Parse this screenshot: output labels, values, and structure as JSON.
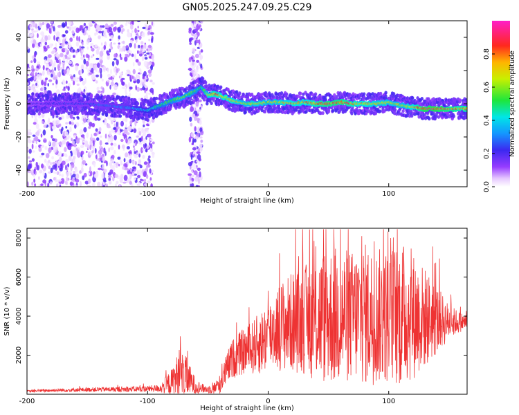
{
  "title": "GN05.2025.247.09.25.C29",
  "chart_data": [
    {
      "type": "heatmap",
      "xlabel": "Height of straight line (km)",
      "ylabel": "Frequency (Hz)",
      "xlim": [
        -200,
        165
      ],
      "ylim": [
        -50,
        50
      ],
      "xticks": [
        -200,
        -100,
        0,
        100
      ],
      "yticks": [
        -40,
        -20,
        0,
        20,
        40
      ],
      "grid": false,
      "colorbar": {
        "label": "Normalized spectral amplitude",
        "range": [
          0,
          1
        ],
        "ticks": [
          "0.0",
          "0.2",
          "0.4",
          "0.6",
          "0.8"
        ],
        "tick_values": [
          0.0,
          0.2,
          0.4,
          0.6,
          0.8
        ]
      },
      "ridge": {
        "description": "dominant frequency track (Hz) vs height (km)",
        "x": [
          -200,
          -150,
          -120,
          -100,
          -90,
          -80,
          -70,
          -60,
          -55,
          -50,
          -45,
          -40,
          -30,
          -20,
          -10,
          0,
          10,
          20,
          30,
          40,
          50,
          60,
          70,
          80,
          90,
          100,
          110,
          120,
          130,
          140,
          150,
          160,
          165
        ],
        "freq": [
          0,
          0,
          -2,
          -4,
          -1,
          2,
          4,
          8,
          10,
          5,
          6,
          5,
          2,
          0,
          0,
          1,
          1,
          0,
          1,
          0,
          0,
          1,
          0,
          0,
          0,
          1,
          -1,
          -2,
          -3,
          -3,
          -3,
          -3,
          -3
        ],
        "amplitude": [
          0.2,
          0.25,
          0.3,
          0.4,
          0.5,
          0.55,
          0.6,
          0.55,
          0.5,
          0.7,
          0.8,
          0.75,
          0.75,
          0.65,
          0.7,
          0.65,
          0.7,
          0.75,
          0.75,
          0.8,
          0.85,
          0.85,
          0.8,
          0.75,
          0.7,
          0.7,
          0.65,
          0.75,
          0.9,
          0.9,
          0.85,
          0.8,
          0.8
        ]
      },
      "noise_bands": [
        {
          "x": [
            -200,
            -95
          ],
          "level": "scattered low amplitude (0.0-0.2)"
        },
        {
          "x": [
            -65,
            -55
          ],
          "level": "vertical band of scattered low amplitude"
        }
      ]
    },
    {
      "type": "line",
      "xlabel": "Height of straight line (km)",
      "ylabel": "SNR (10 * v/v)",
      "xlim": [
        -200,
        165
      ],
      "ylim": [
        0,
        8500
      ],
      "xticks": [
        -200,
        -100,
        0,
        100
      ],
      "yticks": [
        2000,
        4000,
        6000,
        8000
      ],
      "series": [
        {
          "name": "SNR",
          "color": "#ee3333",
          "x": [
            -200,
            -180,
            -160,
            -140,
            -120,
            -100,
            -90,
            -80,
            -75,
            -70,
            -65,
            -60,
            -55,
            -50,
            -45,
            -40,
            -35,
            -30,
            -25,
            -20,
            -15,
            -10,
            -5,
            0,
            5,
            10,
            20,
            30,
            40,
            50,
            60,
            70,
            80,
            90,
            100,
            110,
            120,
            130,
            140,
            150,
            160,
            165
          ],
          "values": [
            150,
            200,
            220,
            250,
            250,
            280,
            300,
            600,
            900,
            1000,
            700,
            400,
            300,
            250,
            300,
            500,
            1200,
            1800,
            2000,
            2200,
            2300,
            2500,
            2700,
            3000,
            3300,
            3500,
            3700,
            3800,
            3900,
            4000,
            4000,
            4000,
            4100,
            4000,
            4000,
            4100,
            4000,
            3900,
            3800,
            3700,
            3700,
            3700
          ],
          "spread": [
            60,
            80,
            100,
            120,
            140,
            160,
            200,
            700,
            1200,
            1200,
            800,
            400,
            250,
            200,
            300,
            500,
            800,
            1000,
            1100,
            1200,
            1300,
            1500,
            1700,
            1800,
            2000,
            2300,
            2600,
            2800,
            3300,
            3600,
            3600,
            3400,
            3700,
            3500,
            3500,
            3800,
            3300,
            2600,
            1800,
            900,
            500,
            400
          ]
        }
      ]
    }
  ]
}
